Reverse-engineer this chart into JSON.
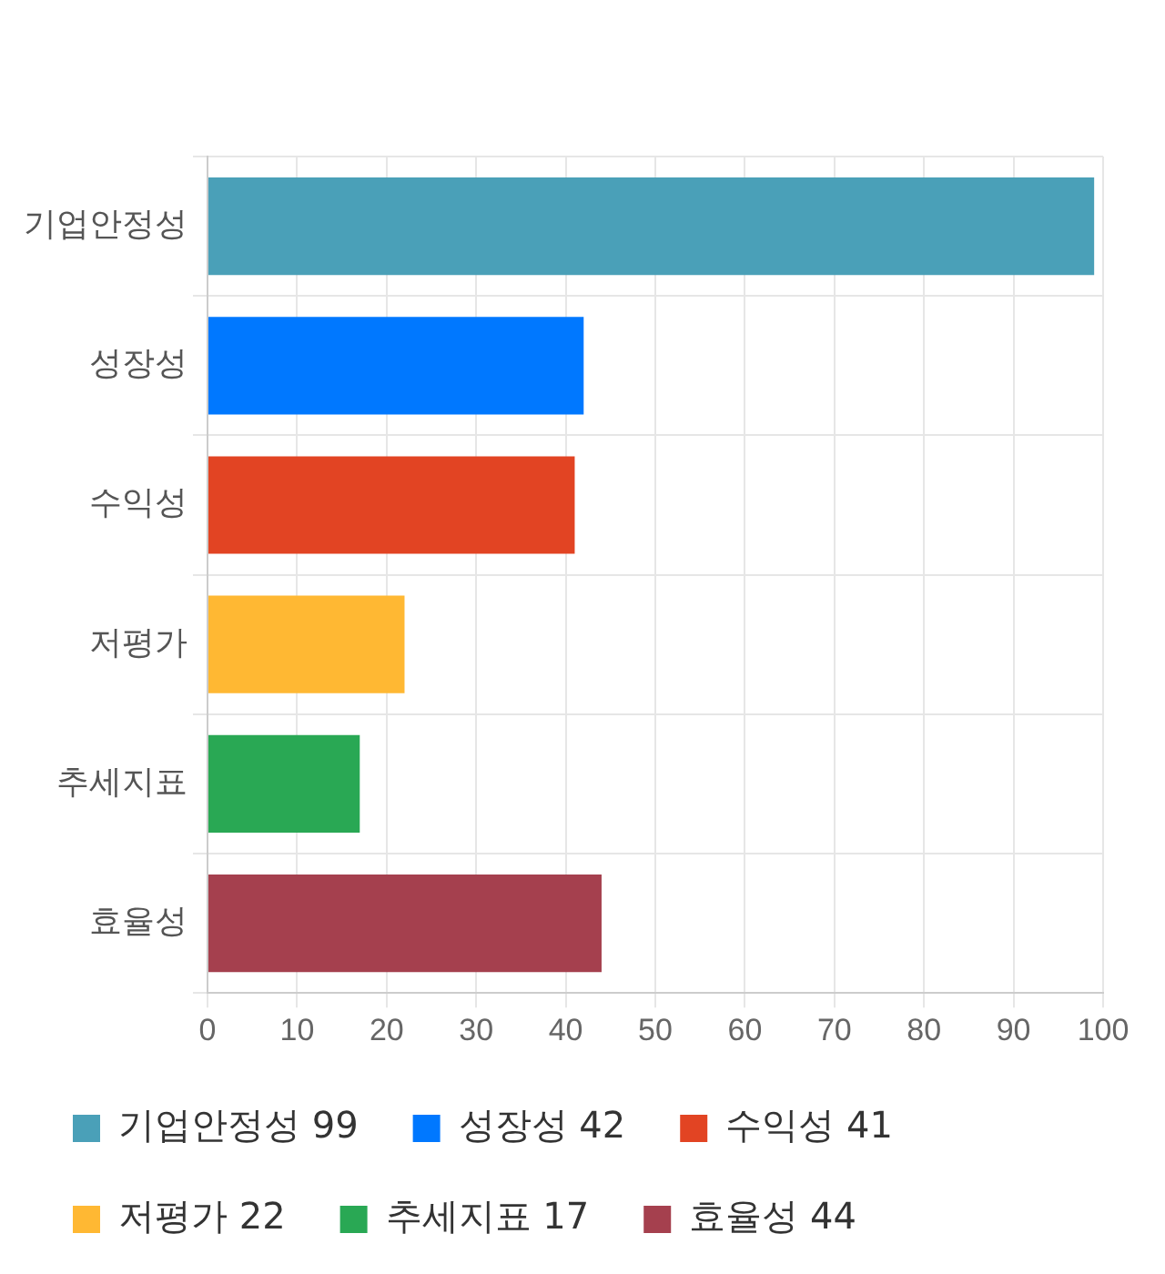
{
  "chart_data": {
    "type": "bar",
    "orientation": "horizontal",
    "categories": [
      "기업안정성",
      "성장성",
      "수익성",
      "저평가",
      "추세지표",
      "효율성"
    ],
    "series": [
      {
        "name": "기업안정성 99",
        "color": "#4aa0b8",
        "values": [
          99,
          null,
          null,
          null,
          null,
          null
        ]
      },
      {
        "name": "성장성 42",
        "color": "#0078ff",
        "values": [
          null,
          42,
          null,
          null,
          null,
          null
        ]
      },
      {
        "name": "수익성 41",
        "color": "#e24423",
        "values": [
          null,
          null,
          41,
          null,
          null,
          null
        ]
      },
      {
        "name": "저평가 22",
        "color": "#ffb833",
        "values": [
          null,
          null,
          null,
          22,
          null,
          null
        ]
      },
      {
        "name": "추세지표 17",
        "color": "#29a854",
        "values": [
          null,
          null,
          null,
          null,
          17,
          null
        ]
      },
      {
        "name": "효율성 44",
        "color": "#a5404e",
        "values": [
          null,
          null,
          null,
          null,
          null,
          44
        ]
      }
    ],
    "xlim": [
      0,
      100
    ],
    "xticks": [
      0,
      10,
      20,
      30,
      40,
      50,
      60,
      70,
      80,
      90,
      100
    ],
    "grid": true,
    "legend": "bottom"
  }
}
